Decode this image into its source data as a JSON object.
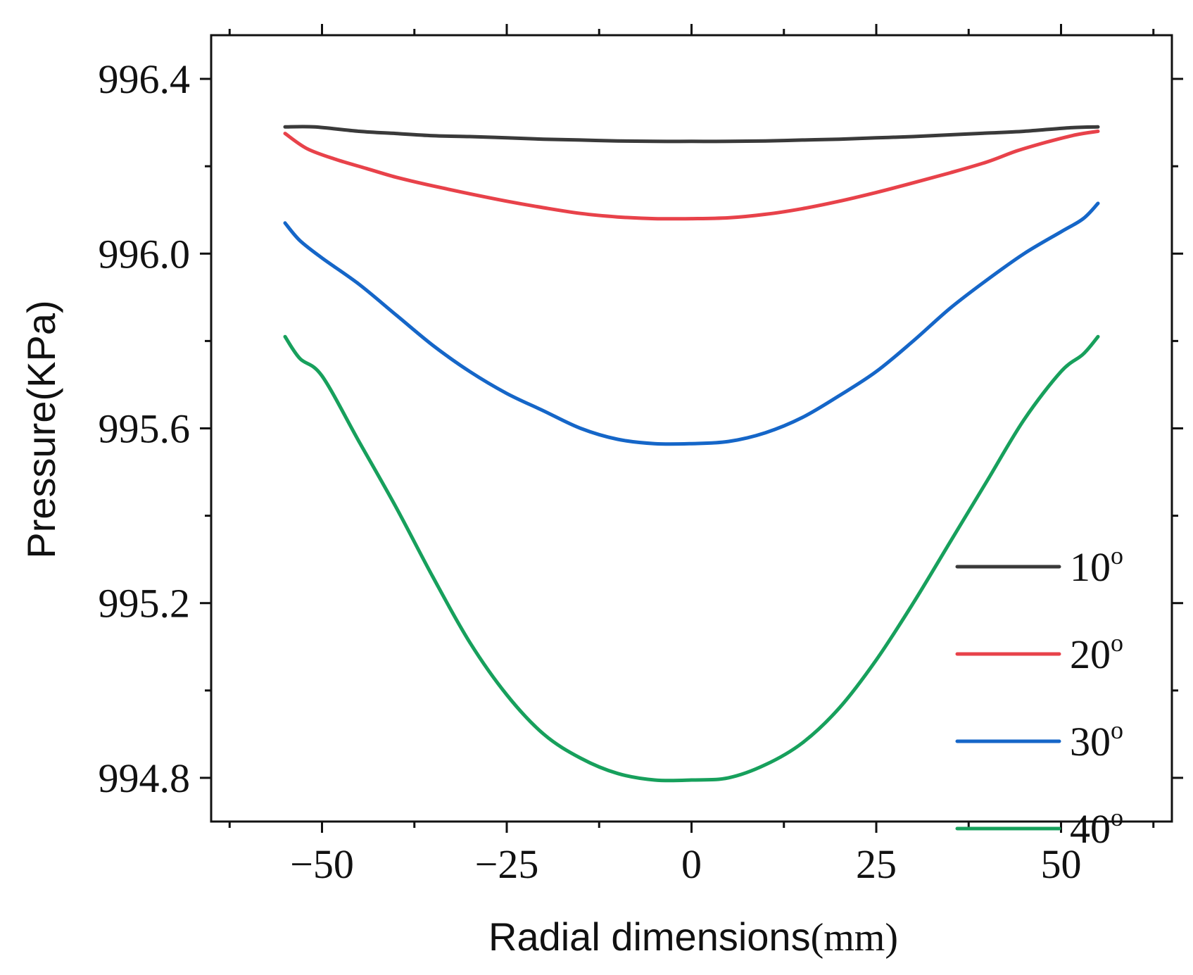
{
  "chart_data": {
    "type": "line",
    "title": "",
    "xlabel": "Radial dimensions",
    "xlabel_unit": "(mm)",
    "ylabel": "Pressure(KPa)",
    "xlim": [
      -65,
      65
    ],
    "ylim": [
      994.7,
      996.5
    ],
    "x_ticks": [
      -50,
      -25,
      0,
      25,
      50
    ],
    "x_tick_labels": [
      "−50",
      "−25",
      "0",
      "25",
      "50"
    ],
    "x_minor_ticks": [
      -62.5,
      -37.5,
      -12.5,
      12.5,
      37.5,
      62.5
    ],
    "y_ticks": [
      994.8,
      995.2,
      995.6,
      996.0,
      996.4
    ],
    "y_tick_labels": [
      "994.8",
      "995.2",
      "995.6",
      "996.0",
      "996.4"
    ],
    "y_minor_ticks": [
      995.0,
      995.4,
      995.8,
      996.2
    ],
    "grid": false,
    "legend_position": "bottom-right",
    "series": [
      {
        "name": "10°",
        "label_main": "10",
        "label_sup": "o",
        "color": "#3a3a3a",
        "x": [
          -55,
          -51,
          -45,
          -40,
          -35,
          -30,
          -25,
          -20,
          -15,
          -10,
          -5,
          0,
          5,
          10,
          15,
          20,
          25,
          30,
          35,
          40,
          45,
          51,
          55
        ],
        "y": [
          996.29,
          996.29,
          996.28,
          996.275,
          996.27,
          996.268,
          996.265,
          996.262,
          996.26,
          996.258,
          996.257,
          996.257,
          996.257,
          996.258,
          996.26,
          996.262,
          996.265,
          996.268,
          996.272,
          996.276,
          996.28,
          996.288,
          996.29
        ]
      },
      {
        "name": "20°",
        "label_main": "20",
        "label_sup": "o",
        "color": "#e8424a",
        "x": [
          -55,
          -52,
          -48,
          -44,
          -40,
          -35,
          -30,
          -25,
          -20,
          -15,
          -10,
          -5,
          0,
          5,
          10,
          15,
          20,
          25,
          30,
          35,
          40,
          44,
          48,
          52,
          55
        ],
        "y": [
          996.275,
          996.24,
          996.215,
          996.195,
          996.175,
          996.155,
          996.137,
          996.12,
          996.105,
          996.092,
          996.084,
          996.08,
          996.08,
          996.082,
          996.09,
          996.103,
          996.12,
          996.14,
          996.162,
          996.185,
          996.21,
          996.235,
          996.255,
          996.272,
          996.28
        ]
      },
      {
        "name": "30°",
        "label_main": "30",
        "label_sup": "o",
        "color": "#1566c8",
        "x": [
          -55,
          -53,
          -50,
          -45,
          -40,
          -35,
          -30,
          -25,
          -20,
          -15,
          -10,
          -5,
          0,
          5,
          10,
          15,
          20,
          25,
          30,
          35,
          40,
          45,
          50,
          53,
          55
        ],
        "y": [
          996.07,
          996.03,
          995.99,
          995.93,
          995.86,
          995.79,
          995.73,
          995.68,
          995.64,
          995.6,
          995.575,
          995.565,
          995.565,
          995.57,
          995.59,
          995.625,
          995.675,
          995.73,
          995.8,
          995.875,
          995.94,
          996.0,
          996.05,
          996.08,
          996.115
        ]
      },
      {
        "name": "40°",
        "label_main": "40",
        "label_sup": "o",
        "color": "#17a05c",
        "x": [
          -55,
          -53,
          -50,
          -45,
          -40,
          -35,
          -30,
          -25,
          -20,
          -15,
          -10,
          -5,
          0,
          5,
          10,
          15,
          20,
          25,
          30,
          35,
          40,
          45,
          50,
          53,
          55
        ],
        "y": [
          995.81,
          995.76,
          995.72,
          995.57,
          995.42,
          995.26,
          995.11,
          994.99,
          994.9,
          994.845,
          994.81,
          994.795,
          994.795,
          994.8,
          994.83,
          994.88,
          994.96,
          995.07,
          995.2,
          995.34,
          995.48,
          995.62,
          995.73,
          995.77,
          995.81
        ]
      }
    ]
  }
}
